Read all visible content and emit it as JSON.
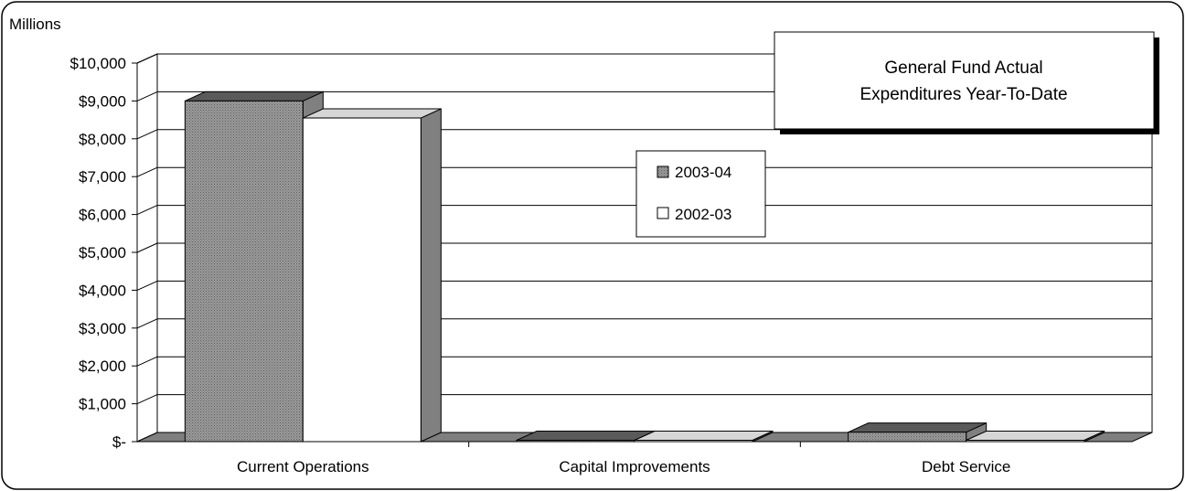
{
  "chart_data": {
    "type": "bar",
    "title": "General Fund Actual Expenditures Year-To-Date",
    "title_lines": [
      "General Fund Actual",
      "Expenditures Year-To-Date"
    ],
    "unit_label": "Millions",
    "categories": [
      "Current Operations",
      "Capital Improvements",
      "Debt Service"
    ],
    "series": [
      {
        "name": "2003-04",
        "values": [
          9000,
          20,
          250
        ],
        "color": "#8c8c8c"
      },
      {
        "name": "2002-03",
        "values": [
          8550,
          15,
          10
        ],
        "color": "#ffffff"
      }
    ],
    "ylim": [
      0,
      10000
    ],
    "y_ticks": [
      0,
      1000,
      2000,
      3000,
      4000,
      5000,
      6000,
      7000,
      8000,
      9000,
      10000
    ],
    "y_tick_labels": [
      "$-",
      "$1,000",
      "$2,000",
      "$3,000",
      "$4,000",
      "$5,000",
      "$6,000",
      "$7,000",
      "$8,000",
      "$9,000",
      "$10,000"
    ],
    "grid": true,
    "legend_position": "center",
    "side_color": "#808080",
    "top_color": "#5a5a5a",
    "floor_color": "#7f7f7f"
  }
}
